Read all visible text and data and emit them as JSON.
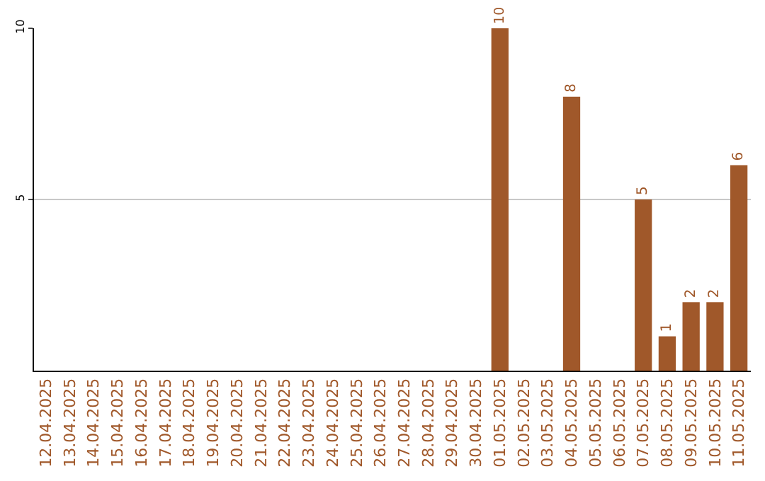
{
  "chart_data": {
    "type": "bar",
    "categories": [
      "12.04.2025",
      "13.04.2025",
      "14.04.2025",
      "15.04.2025",
      "16.04.2025",
      "17.04.2025",
      "18.04.2025",
      "19.04.2025",
      "20.04.2025",
      "21.04.2025",
      "22.04.2025",
      "23.04.2025",
      "24.04.2025",
      "25.04.2025",
      "26.04.2025",
      "27.04.2025",
      "28.04.2025",
      "29.04.2025",
      "30.04.2025",
      "01.05.2025",
      "02.05.2025",
      "03.05.2025",
      "04.05.2025",
      "05.05.2025",
      "06.05.2025",
      "07.05.2025",
      "08.05.2025",
      "09.05.2025",
      "10.05.2025",
      "11.05.2025"
    ],
    "values": [
      null,
      null,
      null,
      null,
      null,
      null,
      null,
      null,
      null,
      null,
      null,
      null,
      null,
      null,
      null,
      null,
      null,
      null,
      null,
      10,
      null,
      null,
      8,
      null,
      null,
      5,
      1,
      2,
      2,
      6
    ],
    "value_labels": [
      null,
      null,
      null,
      null,
      null,
      null,
      null,
      null,
      null,
      null,
      null,
      null,
      null,
      null,
      null,
      null,
      null,
      null,
      null,
      "10",
      null,
      null,
      "8",
      null,
      null,
      "5",
      "1",
      "2",
      "2",
      "6"
    ],
    "color": "#a0582a",
    "ylim": [
      0,
      10
    ],
    "yticks": [
      5,
      10
    ],
    "grid": "y"
  }
}
